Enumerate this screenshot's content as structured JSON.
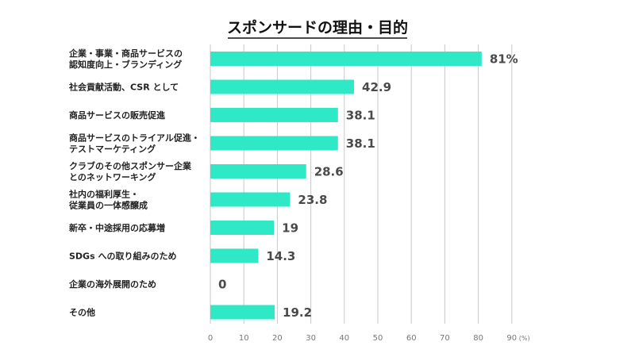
{
  "chart_data": {
    "type": "bar",
    "orientation": "horizontal",
    "title": "スポンサードの理由・目的",
    "categories": [
      [
        "企業・事業・商品サービスの",
        "認知度向上・ブランディング"
      ],
      [
        "社会貢献活動、CSR として"
      ],
      [
        "商品サービスの販売促進"
      ],
      [
        "商品サービスのトライアル促進・",
        "テストマーケティング"
      ],
      [
        "クラブのその他スポンサー企業",
        "とのネットワーキング"
      ],
      [
        "社内の福利厚生・",
        "従業員の一体感醸成"
      ],
      [
        "新卒・中途採用の応募増"
      ],
      [
        "SDGs への取り組みのため"
      ],
      [
        "企業の海外展開のため"
      ],
      [
        "その他"
      ]
    ],
    "values": [
      81,
      42.9,
      38.1,
      38.1,
      28.6,
      23.8,
      19,
      14.3,
      0,
      19.2
    ],
    "value_labels": [
      "81%",
      "42.9",
      "38.1",
      "38.1",
      "28.6",
      "23.8",
      "19",
      "14.3",
      "0",
      "19.2"
    ],
    "xticks": [
      "0",
      "10",
      "20",
      "30",
      "40",
      "50",
      "60",
      "70",
      "80",
      "90"
    ],
    "xunit": "(%)",
    "xlim": [
      0,
      90
    ],
    "grid": true,
    "colors": {
      "bar": "#2ee8c6",
      "grid": "#c9c9c9",
      "title_underline": "#111111"
    }
  }
}
